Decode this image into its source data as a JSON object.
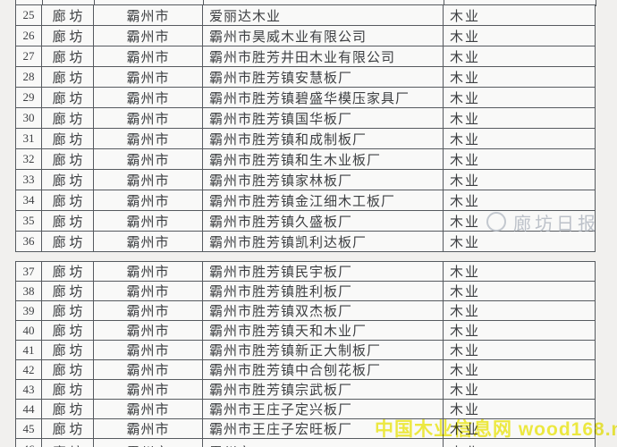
{
  "tables": {
    "upper": {
      "rows": [
        {
          "num": "25",
          "prefecture": "廊 坊",
          "city": "霸州市",
          "company": "爱丽达木业",
          "industry": "木业"
        },
        {
          "num": "26",
          "prefecture": "廊 坊",
          "city": "霸州市",
          "company": "霸州市昊威木业有限公司",
          "industry": "木业"
        },
        {
          "num": "27",
          "prefecture": "廊 坊",
          "city": "霸州市",
          "company": "霸州市胜芳井田木业有限公司",
          "industry": "木业"
        },
        {
          "num": "28",
          "prefecture": "廊 坊",
          "city": "霸州市",
          "company": "霸州市胜芳镇安慧板厂",
          "industry": "木业"
        },
        {
          "num": "29",
          "prefecture": "廊 坊",
          "city": "霸州市",
          "company": "霸州市胜芳镇碧盛华模压家具厂",
          "industry": "木业"
        },
        {
          "num": "30",
          "prefecture": "廊 坊",
          "city": "霸州市",
          "company": "霸州市胜芳镇国华板厂",
          "industry": "木业"
        },
        {
          "num": "31",
          "prefecture": "廊 坊",
          "city": "霸州市",
          "company": "霸州市胜芳镇和成制板厂",
          "industry": "木业"
        },
        {
          "num": "32",
          "prefecture": "廊 坊",
          "city": "霸州市",
          "company": "霸州市胜芳镇和生木业板厂",
          "industry": "木业"
        },
        {
          "num": "33",
          "prefecture": "廊 坊",
          "city": "霸州市",
          "company": "霸州市胜芳镇家林板厂",
          "industry": "木业"
        },
        {
          "num": "34",
          "prefecture": "廊 坊",
          "city": "霸州市",
          "company": "霸州市胜芳镇金江细木工板厂",
          "industry": "木业"
        },
        {
          "num": "35",
          "prefecture": "廊 坊",
          "city": "霸州市",
          "company": "霸州市胜芳镇久盛板厂",
          "industry": "木业"
        },
        {
          "num": "36",
          "prefecture": "廊 坊",
          "city": "霸州市",
          "company": "霸州市胜芳镇凯利达板厂",
          "industry": "木业"
        }
      ]
    },
    "lower": {
      "rows": [
        {
          "num": "37",
          "prefecture": "廊 坊",
          "city": "霸州市",
          "company": "霸州市胜芳镇民宇板厂",
          "industry": "木业"
        },
        {
          "num": "38",
          "prefecture": "廊 坊",
          "city": "霸州市",
          "company": "霸州市胜芳镇胜利板厂",
          "industry": "木业"
        },
        {
          "num": "39",
          "prefecture": "廊 坊",
          "city": "霸州市",
          "company": "霸州市胜芳镇双杰板厂",
          "industry": "木业"
        },
        {
          "num": "40",
          "prefecture": "廊 坊",
          "city": "霸州市",
          "company": "霸州市胜芳镇天和木业厂",
          "industry": "木业"
        },
        {
          "num": "41",
          "prefecture": "廊 坊",
          "city": "霸州市",
          "company": "霸州市胜芳镇新正大制板厂",
          "industry": "木业"
        },
        {
          "num": "42",
          "prefecture": "廊 坊",
          "city": "霸州市",
          "company": "霸州市胜芳镇中合刨花板厂",
          "industry": "木业"
        },
        {
          "num": "43",
          "prefecture": "廊 坊",
          "city": "霸州市",
          "company": "霸州市胜芳镇宗武板厂",
          "industry": "木业"
        },
        {
          "num": "44",
          "prefecture": "廊 坊",
          "city": "霸州市",
          "company": "霸州市王庄子定兴板厂",
          "industry": "木业"
        },
        {
          "num": "45",
          "prefecture": "廊 坊",
          "city": "霸州市",
          "company": "霸州市王庄子宏旺板厂",
          "industry": "木业"
        }
      ]
    }
  },
  "partial_row_bottom": {
    "num": "46",
    "prefecture": "廊 坊",
    "city": "霸州市",
    "company": "霸州市",
    "industry": "木业"
  },
  "watermarks": {
    "langfang_daily": {
      "label": "廊坊日报",
      "color": "#b2b8c1"
    },
    "wood168": {
      "label": "中国木业信息网 wood168.net",
      "color": "#f2ee38"
    }
  }
}
